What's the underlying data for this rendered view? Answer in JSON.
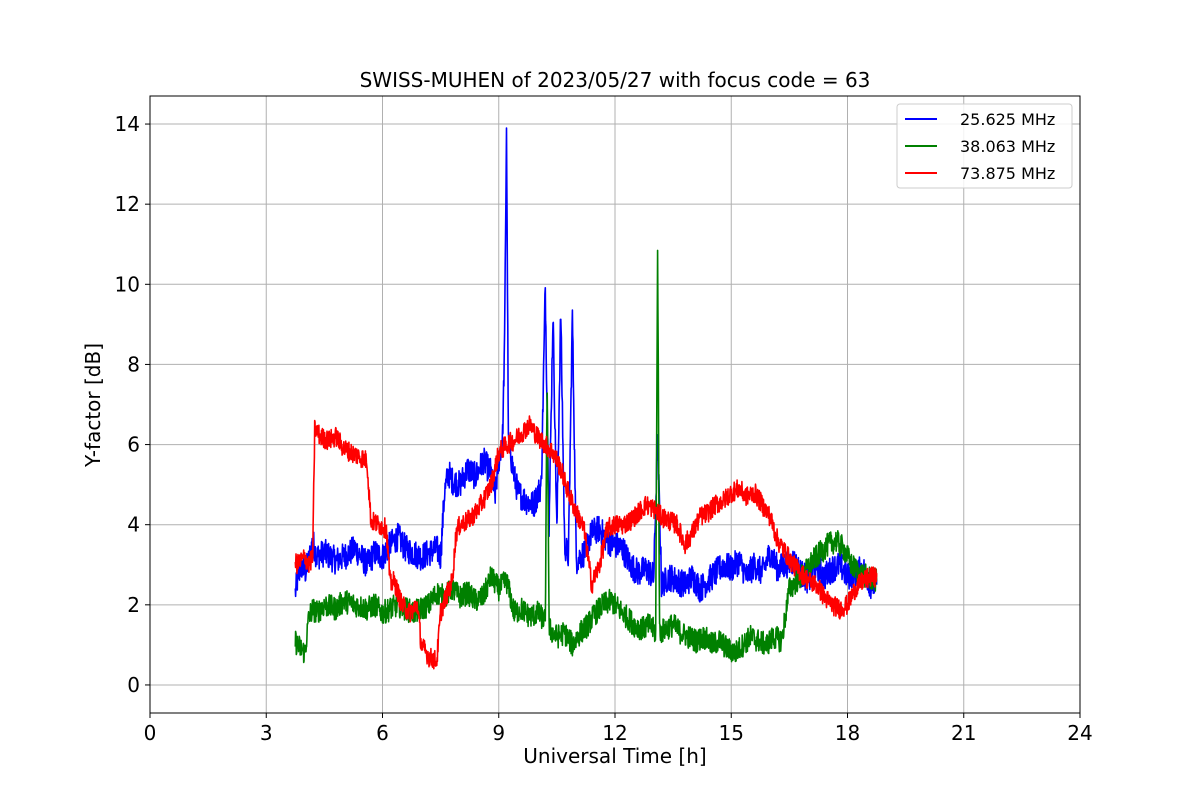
{
  "chart_data": {
    "type": "line",
    "title": "SWISS-MUHEN of 2023/05/27 with focus code = 63",
    "xlabel": "Universal Time [h]",
    "ylabel": "Y-factor [dB]",
    "xlim": [
      0,
      24
    ],
    "ylim": [
      -0.7,
      14.7
    ],
    "x_ticks": [
      0,
      3,
      6,
      9,
      12,
      15,
      18,
      21,
      24
    ],
    "y_ticks": [
      0,
      2,
      4,
      6,
      8,
      10,
      12,
      14
    ],
    "grid": true,
    "legend_position": "top-right",
    "series": [
      {
        "name": "25.625 MHz",
        "color": "#0000ff",
        "x": [
          3.75,
          3.8,
          3.9,
          4.0,
          4.1,
          4.2,
          4.3,
          4.5,
          4.8,
          5.0,
          5.3,
          5.6,
          5.8,
          6.0,
          6.2,
          6.4,
          6.6,
          6.8,
          7.0,
          7.2,
          7.4,
          7.5,
          7.6,
          7.7,
          7.8,
          8.0,
          8.2,
          8.4,
          8.6,
          8.8,
          8.9,
          9.0,
          9.1,
          9.15,
          9.2,
          9.25,
          9.3,
          9.4,
          9.5,
          9.7,
          9.9,
          10.1,
          10.2,
          10.3,
          10.4,
          10.5,
          10.6,
          10.7,
          10.8,
          10.9,
          11.0,
          11.2,
          11.4,
          11.6,
          11.8,
          12.0,
          12.2,
          12.4,
          12.6,
          12.8,
          13.0,
          13.1,
          13.2,
          13.4,
          13.6,
          13.8,
          14.0,
          14.2,
          14.4,
          14.6,
          14.8,
          15.0,
          15.2,
          15.4,
          15.6,
          15.8,
          16.0,
          16.2,
          16.4,
          16.6,
          16.8,
          17.0,
          17.2,
          17.4,
          17.6,
          17.8,
          18.0,
          18.2,
          18.4,
          18.6,
          18.75
        ],
        "values": [
          2.3,
          2.6,
          3.0,
          2.8,
          3.1,
          3.6,
          3.2,
          3.3,
          3.1,
          3.2,
          3.4,
          3.0,
          3.3,
          3.2,
          3.5,
          3.7,
          3.4,
          3.3,
          3.2,
          3.3,
          3.4,
          3.2,
          4.8,
          5.3,
          5.1,
          5.0,
          5.4,
          5.2,
          5.6,
          5.3,
          4.7,
          5.6,
          6.2,
          8.5,
          14.0,
          6.0,
          5.8,
          5.2,
          4.8,
          4.6,
          4.5,
          5.0,
          9.9,
          4.0,
          9.3,
          3.8,
          9.3,
          3.5,
          3.2,
          9.3,
          3.1,
          3.3,
          3.8,
          3.9,
          3.6,
          3.5,
          3.4,
          3.0,
          2.8,
          2.9,
          2.7,
          6.2,
          2.5,
          2.7,
          2.6,
          2.5,
          2.7,
          2.4,
          2.6,
          2.8,
          3.0,
          2.9,
          3.1,
          2.7,
          3.0,
          2.8,
          3.3,
          2.9,
          3.0,
          3.1,
          2.8,
          2.6,
          3.0,
          2.7,
          2.9,
          3.0,
          2.7,
          2.8,
          2.9,
          2.5,
          2.5
        ],
        "jitter": 0.35
      },
      {
        "name": "38.063 MHz",
        "color": "#008000",
        "x": [
          3.75,
          3.8,
          3.9,
          4.0,
          4.1,
          4.2,
          4.3,
          4.5,
          4.8,
          5.0,
          5.3,
          5.6,
          5.8,
          6.0,
          6.2,
          6.4,
          6.6,
          6.8,
          7.0,
          7.2,
          7.4,
          7.6,
          7.8,
          8.0,
          8.2,
          8.4,
          8.6,
          8.8,
          9.0,
          9.2,
          9.4,
          9.6,
          9.8,
          10.0,
          10.2,
          10.25,
          10.3,
          10.5,
          10.7,
          10.9,
          11.1,
          11.3,
          11.5,
          11.7,
          11.9,
          12.1,
          12.3,
          12.5,
          12.7,
          12.9,
          13.05,
          13.1,
          13.15,
          13.3,
          13.5,
          13.7,
          13.9,
          14.1,
          14.3,
          14.5,
          14.7,
          14.9,
          15.1,
          15.3,
          15.5,
          15.7,
          15.9,
          16.1,
          16.3,
          16.5,
          16.7,
          16.9,
          17.1,
          17.3,
          17.5,
          17.7,
          17.9,
          18.1,
          18.3,
          18.5,
          18.75
        ],
        "values": [
          1.1,
          1.0,
          0.9,
          0.8,
          1.7,
          1.9,
          1.8,
          2.0,
          1.9,
          2.1,
          2.0,
          1.9,
          2.0,
          1.8,
          1.9,
          2.0,
          1.9,
          1.8,
          1.9,
          2.0,
          2.3,
          2.2,
          2.4,
          2.2,
          2.3,
          2.1,
          2.2,
          2.7,
          2.4,
          2.6,
          1.8,
          1.9,
          1.7,
          1.8,
          1.6,
          7.5,
          1.4,
          1.2,
          1.3,
          1.0,
          1.3,
          1.5,
          1.8,
          2.0,
          2.1,
          1.9,
          1.7,
          1.5,
          1.4,
          1.5,
          1.3,
          11.1,
          1.3,
          1.4,
          1.5,
          1.3,
          1.2,
          1.1,
          1.2,
          1.0,
          1.1,
          0.9,
          0.8,
          1.0,
          1.2,
          1.1,
          1.0,
          1.2,
          1.1,
          2.4,
          2.6,
          2.8,
          3.1,
          3.3,
          3.5,
          3.6,
          3.4,
          3.0,
          2.8,
          2.7,
          2.6
        ],
        "jitter": 0.3
      },
      {
        "name": "73.875 MHz",
        "color": "#ff0000",
        "x": [
          3.75,
          3.8,
          3.9,
          4.0,
          4.1,
          4.2,
          4.25,
          4.4,
          4.6,
          4.8,
          5.0,
          5.2,
          5.4,
          5.6,
          5.7,
          5.9,
          6.1,
          6.2,
          6.3,
          6.5,
          6.7,
          6.9,
          7.0,
          7.2,
          7.4,
          7.5,
          7.6,
          7.8,
          7.9,
          8.0,
          8.2,
          8.4,
          8.6,
          8.8,
          9.0,
          9.2,
          9.4,
          9.6,
          9.8,
          10.0,
          10.2,
          10.4,
          10.6,
          10.8,
          11.0,
          11.2,
          11.4,
          11.6,
          11.8,
          12.0,
          12.2,
          12.4,
          12.6,
          12.8,
          13.0,
          13.2,
          13.4,
          13.6,
          13.8,
          14.0,
          14.2,
          14.4,
          14.6,
          14.8,
          15.0,
          15.2,
          15.4,
          15.6,
          15.8,
          16.0,
          16.2,
          16.4,
          16.6,
          16.8,
          17.0,
          17.2,
          17.4,
          17.6,
          17.8,
          18.0,
          18.2,
          18.4,
          18.6,
          18.75
        ],
        "values": [
          3.1,
          3.0,
          3.1,
          3.2,
          3.0,
          3.2,
          6.4,
          6.2,
          6.1,
          6.2,
          5.9,
          5.8,
          5.7,
          5.6,
          4.1,
          4.0,
          3.9,
          2.5,
          2.6,
          2.0,
          1.8,
          2.0,
          1.0,
          0.7,
          0.6,
          1.8,
          2.1,
          2.6,
          3.8,
          4.0,
          4.1,
          4.3,
          4.6,
          5.0,
          5.8,
          6.0,
          6.1,
          6.3,
          6.5,
          6.2,
          6.0,
          5.8,
          5.4,
          4.8,
          4.3,
          3.9,
          2.5,
          3.0,
          3.9,
          4.0,
          4.0,
          4.1,
          4.3,
          4.5,
          4.4,
          4.2,
          4.1,
          4.0,
          3.5,
          3.8,
          4.2,
          4.3,
          4.5,
          4.6,
          4.8,
          4.9,
          4.7,
          4.8,
          4.5,
          4.2,
          3.6,
          3.3,
          3.0,
          2.8,
          2.6,
          2.5,
          2.2,
          2.0,
          1.9,
          2.0,
          2.4,
          2.6,
          2.7,
          2.7
        ],
        "jitter": 0.25
      }
    ]
  }
}
